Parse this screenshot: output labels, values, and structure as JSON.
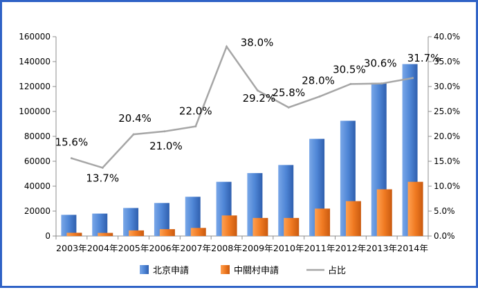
{
  "chart_data": {
    "type": "bar",
    "categories": [
      "2003年",
      "2004年",
      "2005年",
      "2006年",
      "2007年",
      "2008年",
      "2009年",
      "2010年",
      "2011年",
      "2012年",
      "2013年",
      "2014年"
    ],
    "series": [
      {
        "name": "北京申請",
        "type": "bar",
        "axis": "left",
        "color": "#4f86d6",
        "values": [
          17000,
          18000,
          22500,
          26500,
          31500,
          43500,
          50500,
          57000,
          78000,
          92500,
          123000,
          138000
        ]
      },
      {
        "name": "中關村申請",
        "type": "bar",
        "axis": "left",
        "color": "#f07a22",
        "values": [
          2600,
          2500,
          4500,
          5500,
          6500,
          16500,
          14500,
          14500,
          22000,
          28000,
          37500,
          43500
        ]
      },
      {
        "name": "占比",
        "type": "line",
        "axis": "right",
        "color": "#a6a6a6",
        "values": [
          15.6,
          13.7,
          20.4,
          21.0,
          22.0,
          38.0,
          29.2,
          25.8,
          28.0,
          30.5,
          30.6,
          31.7
        ],
        "labels": [
          "15.6%",
          "13.7%",
          "20.4%",
          "21.0%",
          "22.0%",
          "38.0%",
          "29.2%",
          "25.8%",
          "28.0%",
          "30.5%",
          "30.6%",
          "31.7%"
        ]
      }
    ],
    "left_axis": {
      "ylim": [
        0,
        160000
      ],
      "ticks": [
        "0",
        "20000",
        "40000",
        "60000",
        "80000",
        "100000",
        "120000",
        "140000",
        "160000"
      ]
    },
    "right_axis": {
      "ylim": [
        0,
        40
      ],
      "ticks": [
        "0.0%",
        "5.0%",
        "10.0%",
        "15.0%",
        "20.0%",
        "25.0%",
        "30.0%",
        "35.0%",
        "40.0%"
      ]
    },
    "grid": false,
    "legend_position": "bottom"
  }
}
